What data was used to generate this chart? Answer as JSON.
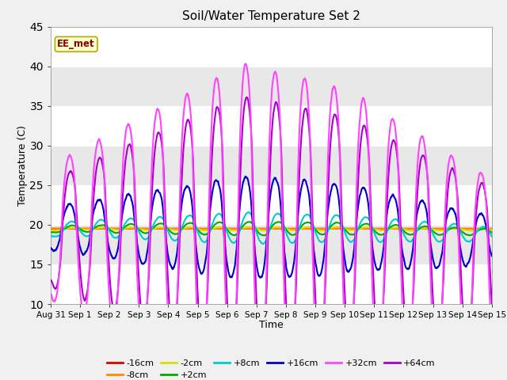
{
  "title": "Soil/Water Temperature Set 2",
  "xlabel": "Time",
  "ylabel": "Temperature (C)",
  "ylim": [
    10,
    45
  ],
  "yticks": [
    10,
    15,
    20,
    25,
    30,
    35,
    40,
    45
  ],
  "x_ticks": [
    0,
    1,
    2,
    3,
    4,
    5,
    6,
    7,
    8,
    9,
    10,
    11,
    12,
    13,
    14,
    15
  ],
  "x_tick_labels": [
    "Aug 31",
    "Sep 1",
    "Sep 2",
    "Sep 3",
    "Sep 4",
    "Sep 5",
    "Sep 6",
    "Sep 7",
    "Sep 8",
    "Sep 9",
    "Sep 10",
    "Sep 11",
    "Sep 12",
    "Sep 13",
    "Sep 14",
    "Sep 15"
  ],
  "watermark": "EE_met",
  "bg_light": "#f0f0f0",
  "bg_dark": "#d8d8d8",
  "series_colors": {
    "-16cm": "#dd0000",
    "-8cm": "#ff8800",
    "-2cm": "#dddd00",
    "+2cm": "#00aa00",
    "+8cm": "#00cccc",
    "+16cm": "#0000cc",
    "+32cm": "#ff44ff",
    "+64cm": "#aa00cc"
  }
}
